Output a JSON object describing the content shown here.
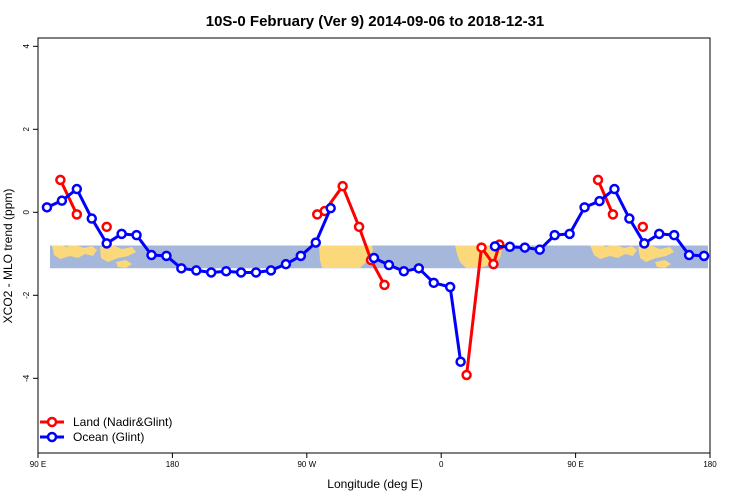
{
  "chart_data": {
    "type": "line",
    "title": "10S-0 February (Ver 9)   2014-09-06 to 2018-12-31",
    "xlabel": "Longitude (deg E)",
    "ylabel": "XCO2 - MLO trend (ppm)",
    "xlim": [
      90,
      540
    ],
    "ylim": [
      -5.8,
      4.2
    ],
    "x_ticks": [
      {
        "x": 90,
        "label": "90 E"
      },
      {
        "x": 180,
        "label": "180"
      },
      {
        "x": 270,
        "label": "90 W"
      },
      {
        "x": 360,
        "label": "0"
      },
      {
        "x": 450,
        "label": "90 E"
      },
      {
        "x": 540,
        "label": "180"
      }
    ],
    "y_ticks": [
      {
        "y": 4,
        "label": "4"
      },
      {
        "y": 2,
        "label": "2"
      },
      {
        "y": 0,
        "label": "0"
      },
      {
        "y": -2,
        "label": "-2"
      },
      {
        "y": -4,
        "label": "-4"
      }
    ],
    "legend_position": "bottom-left",
    "map_strip": {
      "ymin": -1.35,
      "ymax": -0.8,
      "ocean_color": "#a5b8db",
      "land_color": "#fbd87a"
    },
    "series": [
      {
        "name": "Land (Nadir&Glint)",
        "color": "#ff0000",
        "segments": [
          [
            [
              105,
              0.78
            ],
            [
              116,
              -0.05
            ]
          ],
          [
            [
              136,
              -0.35
            ]
          ],
          [
            [
              277,
              -0.05
            ],
            [
              282,
              0.03
            ],
            [
              294,
              0.63
            ],
            [
              305,
              -0.35
            ],
            [
              313,
              -1.15
            ],
            [
              322,
              -1.75
            ]
          ],
          [
            [
              377,
              -3.92
            ],
            [
              387,
              -0.85
            ],
            [
              395,
              -1.25
            ],
            [
              399,
              -0.78
            ]
          ],
          [
            [
              465,
              0.78
            ],
            [
              475,
              -0.05
            ]
          ],
          [
            [
              495,
              -0.35
            ]
          ]
        ]
      },
      {
        "name": "Ocean (Glint)",
        "color": "#0000ff",
        "segments": [
          [
            [
              96,
              0.12
            ],
            [
              106,
              0.28
            ],
            [
              116,
              0.56
            ],
            [
              126,
              -0.15
            ],
            [
              136,
              -0.75
            ],
            [
              146,
              -0.52
            ],
            [
              156,
              -0.55
            ],
            [
              166,
              -1.03
            ],
            [
              176,
              -1.05
            ],
            [
              186,
              -1.35
            ],
            [
              196,
              -1.4
            ],
            [
              206,
              -1.45
            ],
            [
              216,
              -1.42
            ],
            [
              226,
              -1.45
            ],
            [
              236,
              -1.45
            ],
            [
              246,
              -1.4
            ],
            [
              256,
              -1.25
            ],
            [
              266,
              -1.05
            ],
            [
              276,
              -0.73
            ],
            [
              286,
              0.1
            ]
          ],
          [
            [
              315,
              -1.1
            ],
            [
              325,
              -1.27
            ],
            [
              335,
              -1.42
            ],
            [
              345,
              -1.35
            ],
            [
              355,
              -1.7
            ],
            [
              366,
              -1.8
            ],
            [
              373,
              -3.6
            ]
          ],
          [
            [
              396,
              -0.82
            ],
            [
              406,
              -0.83
            ],
            [
              416,
              -0.85
            ],
            [
              426,
              -0.9
            ],
            [
              436,
              -0.55
            ],
            [
              446,
              -0.52
            ],
            [
              456,
              0.12
            ],
            [
              466,
              0.27
            ],
            [
              476,
              0.56
            ],
            [
              486,
              -0.15
            ],
            [
              496,
              -0.75
            ],
            [
              506,
              -0.52
            ],
            [
              516,
              -0.55
            ],
            [
              526,
              -1.03
            ],
            [
              536,
              -1.05
            ]
          ]
        ]
      }
    ]
  }
}
